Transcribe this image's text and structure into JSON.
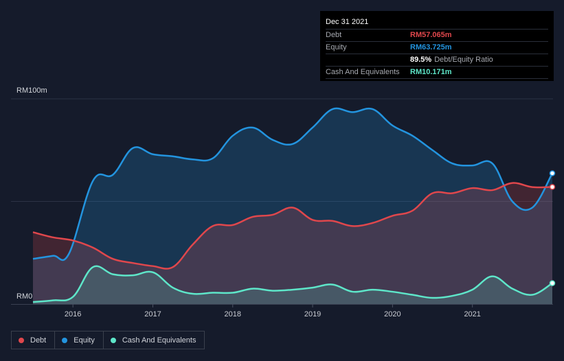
{
  "tooltip": {
    "date": "Dec 31 2021",
    "debt_label": "Debt",
    "debt_value": "RM57.065m",
    "equity_label": "Equity",
    "equity_value": "RM63.725m",
    "ratio_value": "89.5%",
    "ratio_label": "Debt/Equity Ratio",
    "cash_label": "Cash And Equivalents",
    "cash_value": "RM10.171m"
  },
  "legend": [
    {
      "label": "Debt",
      "color": "#e0474c"
    },
    {
      "label": "Equity",
      "color": "#2394df"
    },
    {
      "label": "Cash And Equivalents",
      "color": "#5ee6c9"
    }
  ],
  "chart_data": {
    "type": "area",
    "y_top_label": "RM100m",
    "y_bottom_label": "RM0",
    "ylim": [
      0,
      100
    ],
    "xlim": [
      2015.5,
      2022.0
    ],
    "x_ticks": [
      2016,
      2017,
      2018,
      2019,
      2020,
      2021
    ],
    "x_tick_labels": [
      "2016",
      "2017",
      "2018",
      "2019",
      "2020",
      "2021"
    ],
    "grid": true,
    "series": [
      {
        "name": "Equity",
        "color": "#2394df",
        "points": [
          [
            2015.5,
            22
          ],
          [
            2015.75,
            23.5
          ],
          [
            2015.95,
            24.5
          ],
          [
            2016.25,
            60
          ],
          [
            2016.5,
            63
          ],
          [
            2016.75,
            76
          ],
          [
            2017.0,
            73
          ],
          [
            2017.25,
            72
          ],
          [
            2017.5,
            70.5
          ],
          [
            2017.75,
            71
          ],
          [
            2018.0,
            82
          ],
          [
            2018.25,
            86
          ],
          [
            2018.5,
            80
          ],
          [
            2018.75,
            78
          ],
          [
            2019.0,
            86
          ],
          [
            2019.25,
            95
          ],
          [
            2019.5,
            93.5
          ],
          [
            2019.75,
            95
          ],
          [
            2020.0,
            87
          ],
          [
            2020.25,
            82
          ],
          [
            2020.5,
            75
          ],
          [
            2020.75,
            68.5
          ],
          [
            2021.0,
            67.5
          ],
          [
            2021.25,
            68.5
          ],
          [
            2021.5,
            50
          ],
          [
            2021.75,
            47
          ],
          [
            2022.0,
            63.725
          ]
        ]
      },
      {
        "name": "Debt",
        "color": "#e0474c",
        "points": [
          [
            2015.5,
            35
          ],
          [
            2015.75,
            32.5
          ],
          [
            2016.0,
            31
          ],
          [
            2016.25,
            27.5
          ],
          [
            2016.5,
            22
          ],
          [
            2016.75,
            20
          ],
          [
            2017.0,
            18.5
          ],
          [
            2017.25,
            18
          ],
          [
            2017.5,
            29
          ],
          [
            2017.75,
            38
          ],
          [
            2018.0,
            38.5
          ],
          [
            2018.25,
            42.5
          ],
          [
            2018.5,
            43.5
          ],
          [
            2018.75,
            47
          ],
          [
            2019.0,
            41
          ],
          [
            2019.25,
            40.5
          ],
          [
            2019.5,
            38
          ],
          [
            2019.75,
            39.5
          ],
          [
            2020.0,
            43
          ],
          [
            2020.25,
            45.5
          ],
          [
            2020.5,
            54
          ],
          [
            2020.75,
            54
          ],
          [
            2021.0,
            56.5
          ],
          [
            2021.25,
            55.5
          ],
          [
            2021.5,
            59
          ],
          [
            2021.75,
            57
          ],
          [
            2022.0,
            57.065
          ]
        ]
      },
      {
        "name": "Cash And Equivalents",
        "color": "#5ee6c9",
        "points": [
          [
            2015.5,
            1
          ],
          [
            2015.75,
            1.8
          ],
          [
            2016.0,
            3.5
          ],
          [
            2016.25,
            18
          ],
          [
            2016.5,
            14.5
          ],
          [
            2016.75,
            14
          ],
          [
            2017.0,
            15.5
          ],
          [
            2017.25,
            8
          ],
          [
            2017.5,
            5
          ],
          [
            2017.75,
            5.5
          ],
          [
            2018.0,
            5.5
          ],
          [
            2018.25,
            7.5
          ],
          [
            2018.5,
            6.5
          ],
          [
            2018.75,
            7
          ],
          [
            2019.0,
            8
          ],
          [
            2019.25,
            9.5
          ],
          [
            2019.5,
            6
          ],
          [
            2019.75,
            7
          ],
          [
            2020.0,
            6
          ],
          [
            2020.25,
            4.5
          ],
          [
            2020.5,
            3
          ],
          [
            2020.75,
            4
          ],
          [
            2021.0,
            7
          ],
          [
            2021.25,
            13.5
          ],
          [
            2021.5,
            7.5
          ],
          [
            2021.75,
            4.5
          ],
          [
            2022.0,
            10.171
          ]
        ]
      }
    ]
  }
}
